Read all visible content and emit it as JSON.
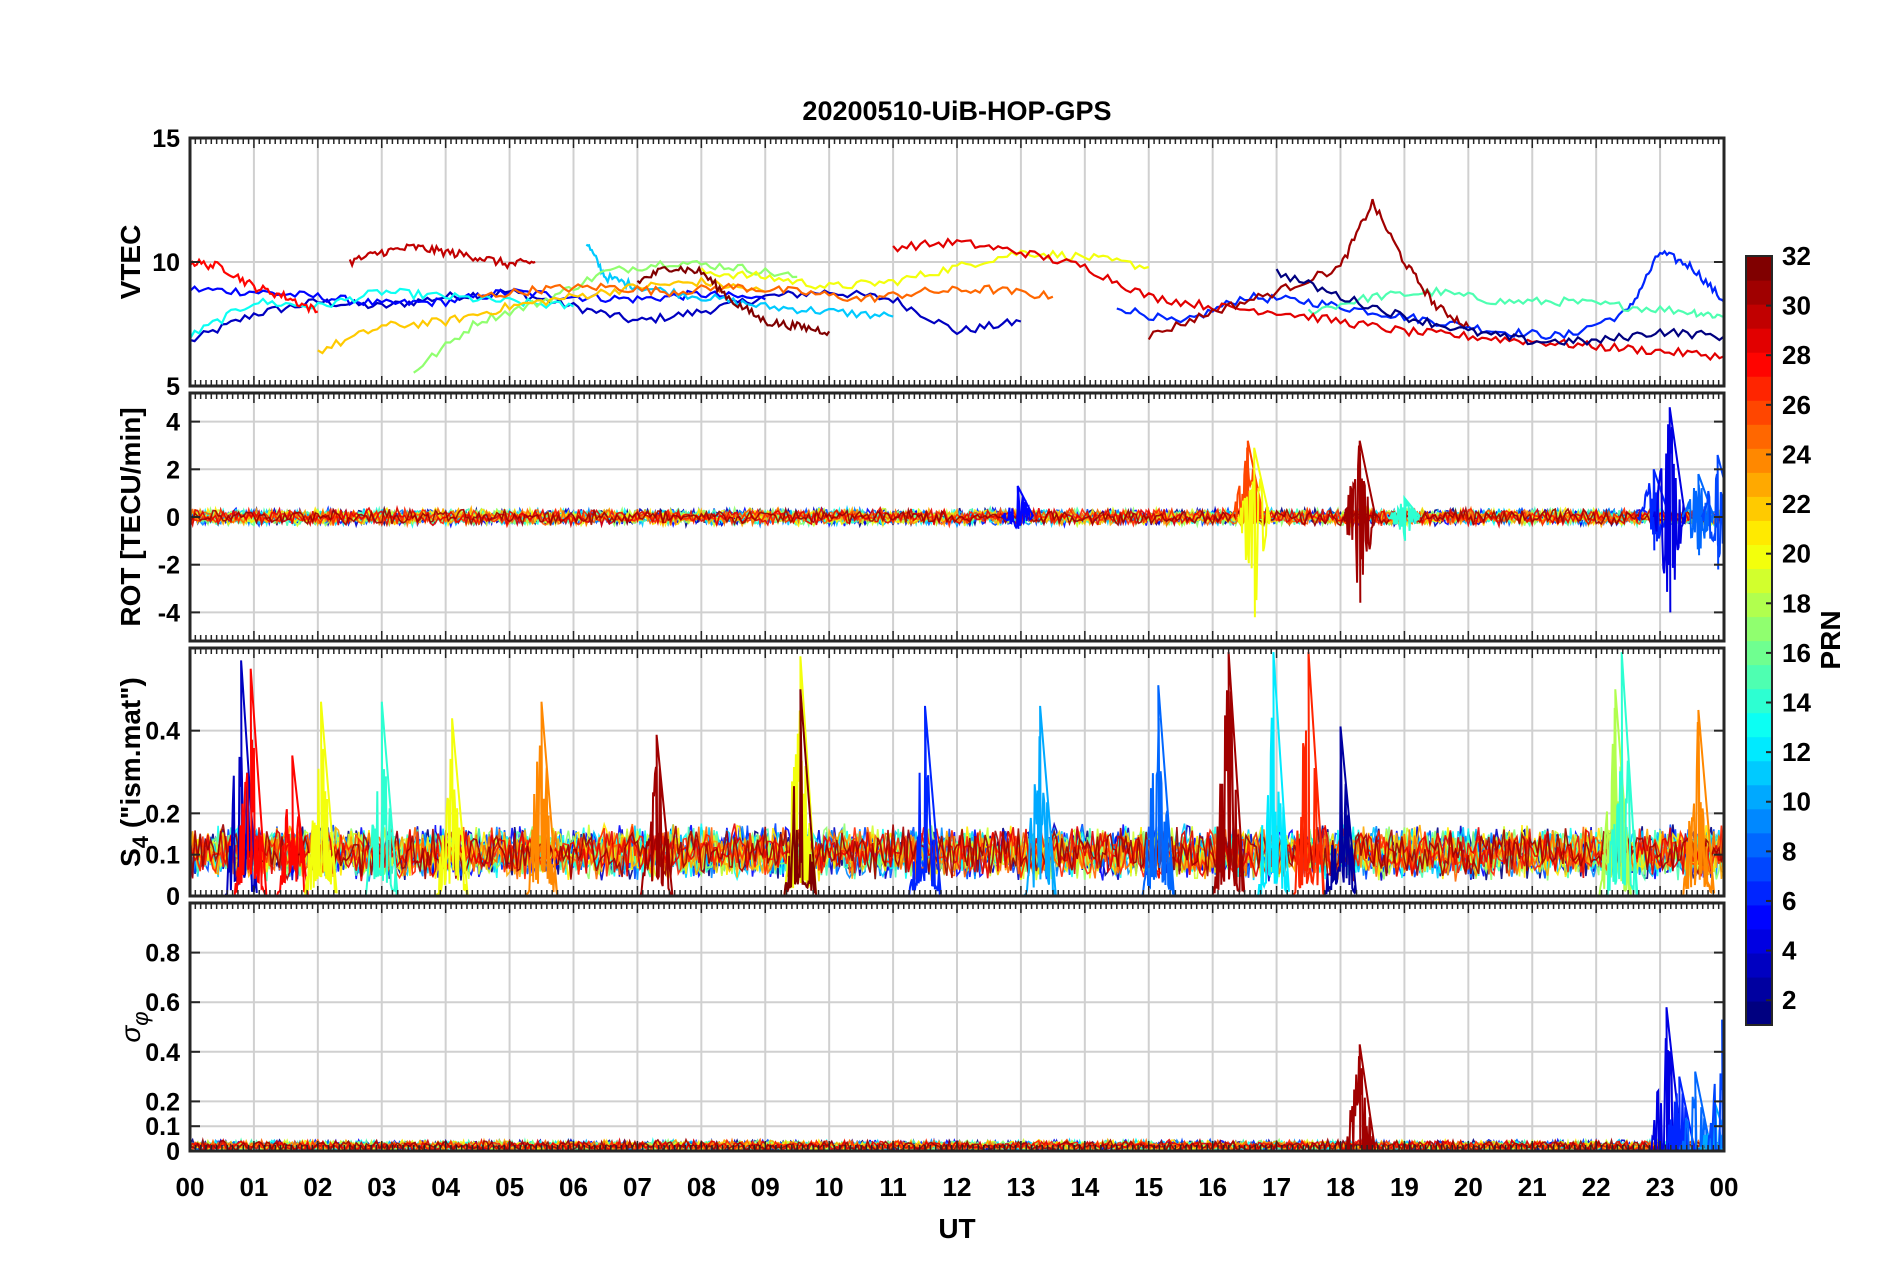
{
  "chart_data": [
    {
      "type": "line",
      "title": "20200510-UiB-HOP-GPS",
      "ylabel": "VTEC",
      "ylim": [
        5,
        15
      ],
      "yticks": [
        {
          "v": 5,
          "label": "5"
        },
        {
          "v": 10,
          "label": "10"
        },
        {
          "v": 15,
          "label": "15"
        }
      ],
      "series": [
        {
          "prn": 3,
          "x": [
            0.0,
            1.0,
            2.0,
            3.0,
            4.0,
            5.0,
            6.0,
            7.0,
            8.0,
            9.0,
            10.0,
            11.0,
            12.0,
            13.0
          ],
          "values": [
            6.8,
            7.9,
            8.4,
            8.2,
            8.6,
            8.8,
            8.2,
            7.6,
            8.0,
            8.6,
            8.8,
            8.5,
            7.2,
            7.6
          ]
        },
        {
          "prn": 5,
          "x": [
            0.0,
            1.0,
            2.0,
            3.0,
            4.0,
            5.0,
            6.0,
            7.0,
            8.0,
            9.0
          ],
          "values": [
            8.9,
            8.8,
            8.6,
            8.3,
            8.4,
            8.8,
            8.6,
            8.5,
            8.7,
            8.5
          ]
        },
        {
          "prn": 6,
          "x": [
            14.5,
            15.5,
            16.5,
            17.5,
            18.5,
            19.5,
            20.5,
            21.5,
            22.5,
            23.0,
            23.5,
            24.0
          ],
          "values": [
            8.2,
            7.5,
            8.6,
            8.4,
            8.0,
            7.6,
            7.2,
            7.0,
            8.0,
            10.4,
            9.8,
            8.4
          ]
        },
        {
          "prn": 11,
          "x": [
            6.2,
            6.5,
            7.0,
            8.0,
            9.0,
            10.0,
            11.0
          ],
          "values": [
            10.8,
            9.4,
            9.0,
            8.6,
            8.2,
            8.0,
            7.8
          ]
        },
        {
          "prn": 13,
          "x": [
            0.0,
            1.0,
            2.0,
            3.0,
            4.0,
            5.0,
            6.0
          ],
          "values": [
            7.0,
            8.4,
            8.2,
            8.8,
            8.6,
            8.4,
            8.2
          ]
        },
        {
          "prn": 15,
          "x": [
            17.5,
            18.5,
            19.5,
            20.5,
            21.5,
            22.5,
            23.5,
            24.0
          ],
          "values": [
            8.0,
            8.6,
            8.8,
            8.4,
            8.4,
            8.2,
            8.0,
            7.8
          ]
        },
        {
          "prn": 17,
          "x": [
            3.5,
            4.5,
            5.5,
            6.5,
            7.5,
            8.5,
            9.5
          ],
          "values": [
            5.6,
            7.6,
            8.4,
            9.6,
            10.0,
            9.8,
            9.4
          ]
        },
        {
          "prn": 20,
          "x": [
            8.0,
            9.0,
            10.0,
            11.0,
            12.0,
            13.0,
            14.0,
            15.0
          ],
          "values": [
            9.6,
            9.4,
            9.0,
            9.2,
            9.8,
            10.4,
            10.2,
            9.8
          ]
        },
        {
          "prn": 22,
          "x": [
            2.0,
            3.0,
            4.0,
            5.0,
            6.0,
            7.0,
            8.0,
            9.0
          ],
          "values": [
            6.4,
            7.4,
            7.6,
            8.2,
            8.6,
            9.0,
            9.2,
            8.8
          ]
        },
        {
          "prn": 25,
          "x": [
            4.5,
            5.5,
            6.5,
            7.5,
            8.5,
            9.5,
            10.5,
            11.5,
            12.5,
            13.5
          ],
          "values": [
            8.6,
            8.9,
            9.0,
            8.8,
            9.0,
            8.8,
            8.5,
            8.8,
            8.9,
            8.6
          ]
        },
        {
          "prn": 28,
          "x": [
            0.0,
            0.5,
            1.0,
            1.5,
            2.0
          ],
          "values": [
            10.0,
            9.8,
            9.0,
            8.6,
            8.0
          ]
        },
        {
          "prn": 29,
          "x": [
            11.0,
            12.0,
            13.0,
            14.0,
            15.0,
            16.0,
            17.0,
            18.0,
            19.0,
            20.0,
            21.0,
            22.0,
            23.0,
            24.0
          ],
          "values": [
            10.6,
            10.8,
            10.4,
            9.8,
            8.6,
            8.2,
            8.0,
            7.6,
            7.2,
            7.0,
            6.8,
            6.6,
            6.4,
            6.2
          ]
        },
        {
          "prn": 30,
          "x": [
            2.5,
            3.0,
            3.5,
            4.0,
            4.5,
            5.0,
            5.4
          ],
          "values": [
            10.0,
            10.4,
            10.6,
            10.4,
            10.2,
            9.9,
            10.0
          ]
        },
        {
          "prn": 32,
          "x": [
            7.0,
            7.5,
            8.0,
            8.5,
            9.0,
            9.5,
            10.0
          ],
          "values": [
            9.2,
            9.8,
            9.6,
            8.4,
            7.6,
            7.4,
            7.2
          ]
        },
        {
          "prn": 31,
          "x": [
            15.0,
            16.0,
            17.0,
            18.0,
            18.5,
            19.0,
            19.5,
            20.0
          ],
          "values": [
            7.0,
            8.0,
            8.8,
            9.8,
            12.4,
            10.0,
            8.2,
            7.4
          ]
        },
        {
          "prn": 1,
          "x": [
            17.0,
            18.0,
            19.0,
            20.0,
            21.0,
            22.0,
            23.0,
            24.0
          ],
          "values": [
            9.6,
            8.6,
            7.8,
            7.2,
            6.8,
            6.8,
            7.2,
            7.0
          ]
        }
      ]
    },
    {
      "type": "line",
      "ylabel": "ROT [TECU/min]",
      "ylim": [
        -5.2,
        5.2
      ],
      "yticks": [
        {
          "v": -4,
          "label": "-4"
        },
        {
          "v": -2,
          "label": "-2"
        },
        {
          "v": 0,
          "label": "0"
        },
        {
          "v": 2,
          "label": "2"
        },
        {
          "v": 4,
          "label": "4"
        }
      ],
      "noise_band": [
        -0.3,
        0.3
      ],
      "spikes": [
        {
          "x": 12.95,
          "min": -0.5,
          "max": 1.3,
          "prn": 5
        },
        {
          "x": 16.55,
          "min": -0.4,
          "max": 3.2,
          "prn": 26
        },
        {
          "x": 16.65,
          "min": -4.2,
          "max": 2.9,
          "prn": 20
        },
        {
          "x": 18.3,
          "min": -3.6,
          "max": 3.2,
          "prn": 31
        },
        {
          "x": 19.0,
          "min": -1.0,
          "max": 0.8,
          "prn": 14
        },
        {
          "x": 22.9,
          "min": -1.4,
          "max": 2.0,
          "prn": 6
        },
        {
          "x": 23.15,
          "min": -4.0,
          "max": 4.6,
          "prn": 4
        },
        {
          "x": 23.6,
          "min": -1.6,
          "max": 1.8,
          "prn": 8
        },
        {
          "x": 23.9,
          "min": -2.2,
          "max": 2.6,
          "prn": 7
        }
      ]
    },
    {
      "type": "line",
      "ylabel": "S4 (\"ism.mat\")",
      "ylabel_sub": "4",
      "ylim": [
        0,
        0.6
      ],
      "yticks": [
        {
          "v": 0,
          "label": "0"
        },
        {
          "v": 0.1,
          "label": "0.1"
        },
        {
          "v": 0.2,
          "label": "0.2"
        },
        {
          "v": 0.4,
          "label": "0.4"
        }
      ],
      "noise_band": [
        0.05,
        0.16
      ],
      "spikes": [
        {
          "x": 0.8,
          "min": 0.08,
          "max": 0.57,
          "prn": 3
        },
        {
          "x": 0.95,
          "min": 0.1,
          "max": 0.55,
          "prn": 28
        },
        {
          "x": 1.6,
          "min": 0.1,
          "max": 0.34,
          "prn": 28
        },
        {
          "x": 2.05,
          "min": 0.08,
          "max": 0.47,
          "prn": 20
        },
        {
          "x": 3.0,
          "min": 0.08,
          "max": 0.47,
          "prn": 14
        },
        {
          "x": 4.1,
          "min": 0.08,
          "max": 0.43,
          "prn": 20
        },
        {
          "x": 5.5,
          "min": 0.08,
          "max": 0.47,
          "prn": 24
        },
        {
          "x": 7.3,
          "min": 0.08,
          "max": 0.39,
          "prn": 31
        },
        {
          "x": 9.55,
          "min": 0.08,
          "max": 0.58,
          "prn": 20
        },
        {
          "x": 9.55,
          "min": 0.08,
          "max": 0.5,
          "prn": 32
        },
        {
          "x": 11.5,
          "min": 0.08,
          "max": 0.46,
          "prn": 6
        },
        {
          "x": 13.3,
          "min": 0.08,
          "max": 0.46,
          "prn": 10
        },
        {
          "x": 15.15,
          "min": 0.08,
          "max": 0.51,
          "prn": 8
        },
        {
          "x": 16.25,
          "min": 0.08,
          "max": 0.59,
          "prn": 31
        },
        {
          "x": 16.95,
          "min": 0.08,
          "max": 0.59,
          "prn": 12
        },
        {
          "x": 17.5,
          "min": 0.08,
          "max": 0.59,
          "prn": 27
        },
        {
          "x": 18.0,
          "min": 0.08,
          "max": 0.41,
          "prn": 2
        },
        {
          "x": 22.3,
          "min": 0.08,
          "max": 0.5,
          "prn": 18
        },
        {
          "x": 22.4,
          "min": 0.08,
          "max": 0.59,
          "prn": 14
        },
        {
          "x": 23.6,
          "min": 0.08,
          "max": 0.45,
          "prn": 24
        }
      ]
    },
    {
      "type": "line",
      "ylabel": "σφ",
      "ylim": [
        0,
        1.0
      ],
      "yticks": [
        {
          "v": 0,
          "label": "0"
        },
        {
          "v": 0.1,
          "label": "0.1"
        },
        {
          "v": 0.2,
          "label": "0.2"
        },
        {
          "v": 0.4,
          "label": "0.4"
        },
        {
          "v": 0.6,
          "label": "0.6"
        },
        {
          "v": 0.8,
          "label": "0.8"
        }
      ],
      "noise_band": [
        0.0,
        0.04
      ],
      "spikes": [
        {
          "x": 18.3,
          "min": 0.01,
          "max": 0.43,
          "prn": 31
        },
        {
          "x": 23.1,
          "min": 0.01,
          "max": 0.58,
          "prn": 4
        },
        {
          "x": 23.3,
          "min": 0.01,
          "max": 0.3,
          "prn": 6
        },
        {
          "x": 23.55,
          "min": 0.01,
          "max": 0.32,
          "prn": 8
        },
        {
          "x": 23.85,
          "min": 0.01,
          "max": 0.2,
          "prn": 10
        },
        {
          "x": 23.97,
          "min": 0.01,
          "max": 0.53,
          "prn": 7
        }
      ]
    }
  ],
  "xaxis": {
    "label": "UT",
    "range": [
      0,
      24
    ],
    "ticklabels": [
      "00",
      "01",
      "02",
      "03",
      "04",
      "05",
      "06",
      "07",
      "08",
      "09",
      "10",
      "11",
      "12",
      "13",
      "14",
      "15",
      "16",
      "17",
      "18",
      "19",
      "20",
      "21",
      "22",
      "23",
      "00"
    ]
  },
  "colorbar": {
    "label": "PRN",
    "range": [
      1,
      32
    ],
    "ticks": [
      "2",
      "4",
      "6",
      "8",
      "10",
      "12",
      "14",
      "16",
      "18",
      "20",
      "22",
      "24",
      "26",
      "28",
      "30",
      "32"
    ],
    "colormap": "jet"
  }
}
